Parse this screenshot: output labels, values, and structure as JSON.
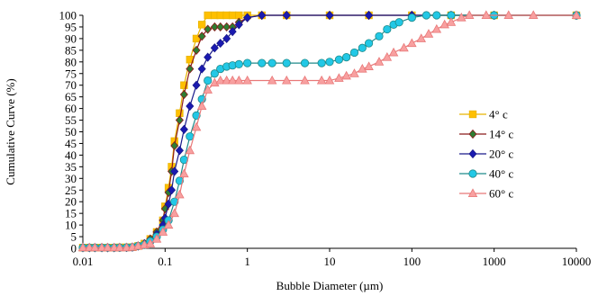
{
  "chart_data": {
    "type": "scatter",
    "xlabel": "Bubble Diameter (µm)",
    "ylabel": "Cumulative Curve (%)",
    "xscale": "log",
    "xlim": [
      0.01,
      10000
    ],
    "ylim": [
      0,
      100
    ],
    "x_ticks": [
      "0.01",
      "0.1",
      "1",
      "10",
      "100",
      "1000",
      "10000"
    ],
    "y_ticks": [
      "0",
      "5",
      "10",
      "15",
      "20",
      "25",
      "30",
      "35",
      "40",
      "45",
      "50",
      "55",
      "60",
      "65",
      "70",
      "75",
      "80",
      "85",
      "90",
      "95",
      "100"
    ],
    "grid": false,
    "legend_position": "right",
    "series": [
      {
        "name": "4° c",
        "color": "#E8B400",
        "fill": "#FFC000",
        "marker": "square",
        "points": [
          [
            0.01,
            0.3
          ],
          [
            0.012,
            0.3
          ],
          [
            0.014,
            0.3
          ],
          [
            0.017,
            0.3
          ],
          [
            0.02,
            0.3
          ],
          [
            0.024,
            0.3
          ],
          [
            0.028,
            0.4
          ],
          [
            0.034,
            0.4
          ],
          [
            0.04,
            0.5
          ],
          [
            0.047,
            1
          ],
          [
            0.056,
            2
          ],
          [
            0.066,
            4
          ],
          [
            0.079,
            7
          ],
          [
            0.094,
            12
          ],
          [
            0.1,
            18
          ],
          [
            0.11,
            26
          ],
          [
            0.12,
            35
          ],
          [
            0.13,
            46
          ],
          [
            0.15,
            58
          ],
          [
            0.17,
            70
          ],
          [
            0.2,
            81
          ],
          [
            0.24,
            90
          ],
          [
            0.28,
            96
          ],
          [
            0.33,
            100
          ],
          [
            0.4,
            100
          ],
          [
            0.47,
            100
          ],
          [
            0.56,
            100
          ],
          [
            0.66,
            100
          ],
          [
            0.79,
            100
          ],
          [
            1,
            100
          ],
          [
            1.5,
            100
          ],
          [
            3,
            100
          ],
          [
            10,
            100
          ],
          [
            30,
            100
          ],
          [
            100,
            100
          ],
          [
            300,
            100
          ],
          [
            1000,
            100
          ],
          [
            10000,
            100
          ]
        ]
      },
      {
        "name": "14° c",
        "color": "#8B1A1A",
        "fill": "#2E7D32",
        "marker": "diamond",
        "points": [
          [
            0.01,
            0.3
          ],
          [
            0.012,
            0.3
          ],
          [
            0.014,
            0.3
          ],
          [
            0.017,
            0.3
          ],
          [
            0.02,
            0.3
          ],
          [
            0.024,
            0.3
          ],
          [
            0.028,
            0.4
          ],
          [
            0.034,
            0.4
          ],
          [
            0.04,
            0.5
          ],
          [
            0.047,
            1
          ],
          [
            0.056,
            2
          ],
          [
            0.066,
            4
          ],
          [
            0.079,
            7
          ],
          [
            0.094,
            12
          ],
          [
            0.1,
            17
          ],
          [
            0.11,
            24
          ],
          [
            0.12,
            33
          ],
          [
            0.13,
            44
          ],
          [
            0.15,
            55
          ],
          [
            0.17,
            66
          ],
          [
            0.2,
            77
          ],
          [
            0.24,
            85
          ],
          [
            0.28,
            91
          ],
          [
            0.33,
            94
          ],
          [
            0.4,
            95
          ],
          [
            0.47,
            95
          ],
          [
            0.56,
            95
          ],
          [
            0.66,
            95
          ],
          [
            0.79,
            97
          ],
          [
            1,
            99
          ],
          [
            1.5,
            100
          ],
          [
            3,
            100
          ],
          [
            10,
            100
          ],
          [
            30,
            100
          ],
          [
            100,
            100
          ],
          [
            300,
            100
          ],
          [
            1000,
            100
          ],
          [
            10000,
            100
          ]
        ]
      },
      {
        "name": "20° c",
        "color": "#1A1A8B",
        "fill": "#1A1AB0",
        "marker": "diamond",
        "points": [
          [
            0.01,
            0.3
          ],
          [
            0.012,
            0.3
          ],
          [
            0.014,
            0.3
          ],
          [
            0.017,
            0.3
          ],
          [
            0.02,
            0.3
          ],
          [
            0.024,
            0.3
          ],
          [
            0.028,
            0.4
          ],
          [
            0.034,
            0.4
          ],
          [
            0.04,
            0.5
          ],
          [
            0.047,
            1
          ],
          [
            0.056,
            2
          ],
          [
            0.066,
            3
          ],
          [
            0.079,
            6
          ],
          [
            0.094,
            10
          ],
          [
            0.1,
            13
          ],
          [
            0.11,
            19
          ],
          [
            0.12,
            25
          ],
          [
            0.13,
            33
          ],
          [
            0.15,
            42
          ],
          [
            0.17,
            51
          ],
          [
            0.2,
            61
          ],
          [
            0.24,
            70
          ],
          [
            0.28,
            77
          ],
          [
            0.33,
            82
          ],
          [
            0.4,
            86
          ],
          [
            0.47,
            88
          ],
          [
            0.56,
            90
          ],
          [
            0.66,
            93
          ],
          [
            0.79,
            96
          ],
          [
            1,
            99
          ],
          [
            1.5,
            100
          ],
          [
            3,
            100
          ],
          [
            10,
            100
          ],
          [
            30,
            100
          ],
          [
            100,
            100
          ],
          [
            300,
            100
          ],
          [
            1000,
            100
          ],
          [
            10000,
            100
          ]
        ]
      },
      {
        "name": "40° c",
        "color": "#1F8A8A",
        "fill": "#22C8E6",
        "marker": "circle",
        "points": [
          [
            0.01,
            0.3
          ],
          [
            0.012,
            0.3
          ],
          [
            0.014,
            0.3
          ],
          [
            0.017,
            0.3
          ],
          [
            0.02,
            0.3
          ],
          [
            0.024,
            0.3
          ],
          [
            0.028,
            0.3
          ],
          [
            0.034,
            0.4
          ],
          [
            0.04,
            0.5
          ],
          [
            0.047,
            1
          ],
          [
            0.056,
            1.5
          ],
          [
            0.066,
            3
          ],
          [
            0.079,
            5
          ],
          [
            0.094,
            8
          ],
          [
            0.11,
            12
          ],
          [
            0.13,
            20
          ],
          [
            0.15,
            29
          ],
          [
            0.17,
            38
          ],
          [
            0.2,
            48
          ],
          [
            0.24,
            57
          ],
          [
            0.28,
            64
          ],
          [
            0.33,
            72
          ],
          [
            0.4,
            75
          ],
          [
            0.47,
            77
          ],
          [
            0.56,
            78
          ],
          [
            0.66,
            78.5
          ],
          [
            0.79,
            79
          ],
          [
            1,
            79.5
          ],
          [
            1.5,
            79.5
          ],
          [
            2,
            79.5
          ],
          [
            3,
            79.5
          ],
          [
            5,
            79.5
          ],
          [
            8,
            79.5
          ],
          [
            10,
            80
          ],
          [
            13,
            81
          ],
          [
            16,
            82
          ],
          [
            20,
            84
          ],
          [
            25,
            86
          ],
          [
            30,
            88
          ],
          [
            40,
            91
          ],
          [
            50,
            94
          ],
          [
            60,
            96
          ],
          [
            70,
            97
          ],
          [
            100,
            99
          ],
          [
            150,
            100
          ],
          [
            200,
            100
          ],
          [
            300,
            100
          ],
          [
            1000,
            100
          ],
          [
            10000,
            100
          ]
        ]
      },
      {
        "name": "60° c",
        "color": "#E87878",
        "fill": "#F8A0A0",
        "marker": "triangle",
        "points": [
          [
            0.01,
            0.3
          ],
          [
            0.012,
            0.3
          ],
          [
            0.014,
            0.3
          ],
          [
            0.017,
            0.3
          ],
          [
            0.02,
            0.3
          ],
          [
            0.024,
            0.3
          ],
          [
            0.028,
            0.3
          ],
          [
            0.034,
            0.3
          ],
          [
            0.04,
            0.5
          ],
          [
            0.047,
            1
          ],
          [
            0.056,
            1.5
          ],
          [
            0.066,
            2
          ],
          [
            0.079,
            4
          ],
          [
            0.094,
            7
          ],
          [
            0.11,
            10
          ],
          [
            0.13,
            15
          ],
          [
            0.15,
            23
          ],
          [
            0.17,
            32
          ],
          [
            0.2,
            42
          ],
          [
            0.24,
            52
          ],
          [
            0.28,
            61
          ],
          [
            0.33,
            68
          ],
          [
            0.4,
            71
          ],
          [
            0.47,
            72
          ],
          [
            0.56,
            72
          ],
          [
            0.66,
            72
          ],
          [
            0.79,
            72
          ],
          [
            1,
            72
          ],
          [
            2,
            72
          ],
          [
            3,
            72
          ],
          [
            5,
            72
          ],
          [
            8,
            72
          ],
          [
            10,
            72
          ],
          [
            13,
            73
          ],
          [
            16,
            74
          ],
          [
            20,
            75
          ],
          [
            25,
            77
          ],
          [
            30,
            78
          ],
          [
            40,
            80
          ],
          [
            50,
            82
          ],
          [
            60,
            84
          ],
          [
            80,
            86
          ],
          [
            100,
            88
          ],
          [
            130,
            90
          ],
          [
            160,
            92
          ],
          [
            200,
            94
          ],
          [
            250,
            96
          ],
          [
            300,
            97
          ],
          [
            400,
            99
          ],
          [
            500,
            100
          ],
          [
            800,
            100
          ],
          [
            1500,
            100
          ],
          [
            3000,
            100
          ],
          [
            10000,
            100
          ]
        ]
      }
    ]
  }
}
